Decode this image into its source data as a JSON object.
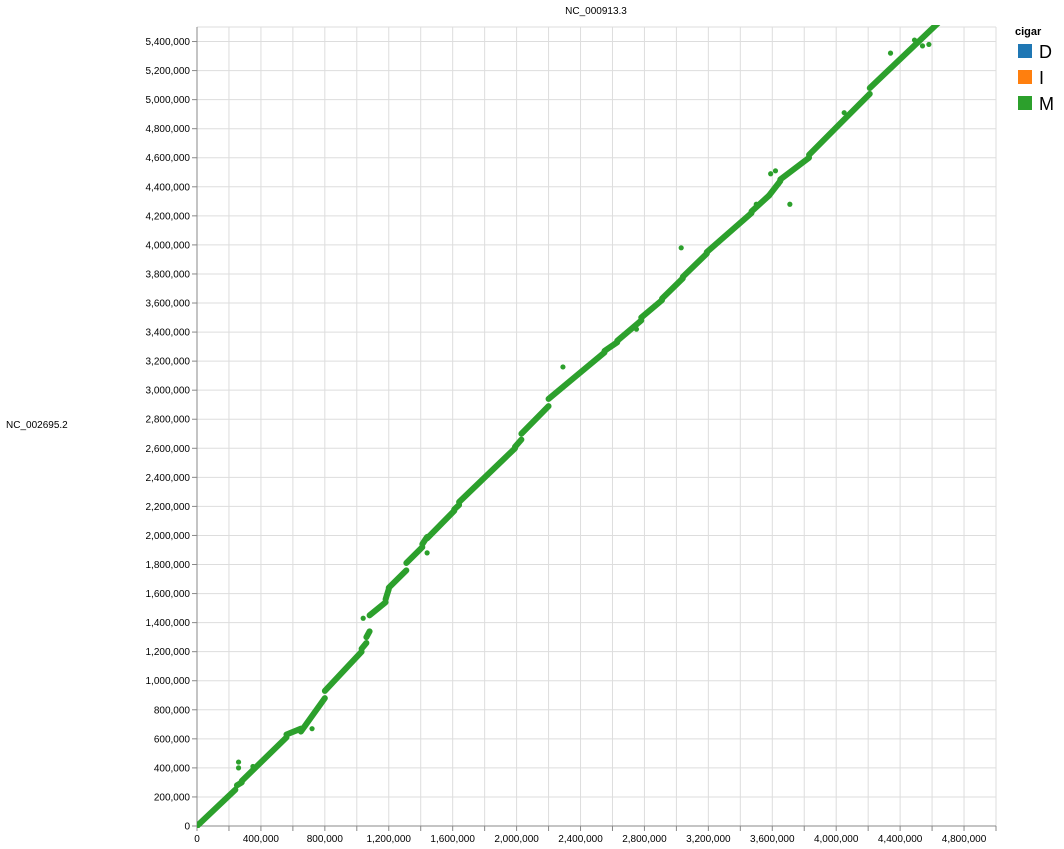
{
  "chart_data": {
    "type": "scatter",
    "title": "",
    "xlabel": "NC_000913.3",
    "ylabel": "NC_002695.2",
    "xlim": [
      0,
      5000000
    ],
    "ylim": [
      0,
      5500000
    ],
    "x_ticks": [
      0,
      400000,
      800000,
      1200000,
      1600000,
      2000000,
      2400000,
      2800000,
      3200000,
      3600000,
      4000000,
      4400000,
      4800000
    ],
    "x_tick_labels": [
      "0",
      "400,000",
      "800,000",
      "1,200,000",
      "1,600,000",
      "2,000,000",
      "2,400,000",
      "2,800,000",
      "3,200,000",
      "3,600,000",
      "4,000,000",
      "4,400,000",
      "4,800,000"
    ],
    "y_ticks": [
      0,
      200000,
      400000,
      600000,
      800000,
      1000000,
      1200000,
      1400000,
      1600000,
      1800000,
      2000000,
      2200000,
      2400000,
      2600000,
      2800000,
      3000000,
      3200000,
      3400000,
      3600000,
      3800000,
      4000000,
      4200000,
      4400000,
      4600000,
      4800000,
      5000000,
      5200000,
      5400000
    ],
    "y_tick_labels": [
      "0",
      "200,000",
      "400,000",
      "600,000",
      "800,000",
      "1,000,000",
      "1,200,000",
      "1,400,000",
      "1,600,000",
      "1,800,000",
      "2,000,000",
      "2,200,000",
      "2,400,000",
      "2,600,000",
      "2,800,000",
      "3,000,000",
      "3,200,000",
      "3,400,000",
      "3,600,000",
      "3,800,000",
      "4,000,000",
      "4,200,000",
      "4,400,000",
      "4,600,000",
      "4,800,000",
      "5,000,000",
      "5,200,000",
      "5,400,000"
    ],
    "grid": true,
    "legend": {
      "title": "cigar",
      "placement": "top-right",
      "items": [
        {
          "label": "D",
          "color": "#1f77b4"
        },
        {
          "label": "I",
          "color": "#ff7f0e"
        },
        {
          "label": "M",
          "color": "#2ca02c"
        }
      ]
    },
    "series": [
      {
        "name": "M",
        "color": "#2ca02c",
        "segments": [
          [
            [
              0,
              0
            ],
            [
              240000,
              250000
            ]
          ],
          [
            [
              250000,
              280000
            ],
            [
              280000,
              300000
            ]
          ],
          [
            [
              280000,
              310000
            ],
            [
              560000,
              610000
            ]
          ],
          [
            [
              560000,
              630000
            ],
            [
              650000,
              670000
            ]
          ],
          [
            [
              650000,
              650000
            ],
            [
              800000,
              880000
            ]
          ],
          [
            [
              800000,
              930000
            ],
            [
              1030000,
              1200000
            ]
          ],
          [
            [
              1030000,
              1220000
            ],
            [
              1060000,
              1260000
            ]
          ],
          [
            [
              1060000,
              1300000
            ],
            [
              1080000,
              1340000
            ]
          ],
          [
            [
              1080000,
              1450000
            ],
            [
              1180000,
              1540000
            ]
          ],
          [
            [
              1180000,
              1560000
            ],
            [
              1200000,
              1630000
            ]
          ],
          [
            [
              1200000,
              1640000
            ],
            [
              1310000,
              1760000
            ]
          ],
          [
            [
              1310000,
              1810000
            ],
            [
              1410000,
              1920000
            ]
          ],
          [
            [
              1410000,
              1940000
            ],
            [
              1440000,
              1990000
            ]
          ],
          [
            [
              1440000,
              1980000
            ],
            [
              1610000,
              2170000
            ]
          ],
          [
            [
              1610000,
              2180000
            ],
            [
              1640000,
              2210000
            ]
          ],
          [
            [
              1640000,
              2230000
            ],
            [
              1990000,
              2600000
            ]
          ],
          [
            [
              1990000,
              2610000
            ],
            [
              2030000,
              2660000
            ]
          ],
          [
            [
              2030000,
              2700000
            ],
            [
              2200000,
              2890000
            ]
          ],
          [
            [
              2200000,
              2940000
            ],
            [
              2550000,
              3260000
            ]
          ],
          [
            [
              2550000,
              3270000
            ],
            [
              2630000,
              3330000
            ]
          ],
          [
            [
              2630000,
              3340000
            ],
            [
              2780000,
              3480000
            ]
          ],
          [
            [
              2780000,
              3500000
            ],
            [
              2910000,
              3620000
            ]
          ],
          [
            [
              2910000,
              3630000
            ],
            [
              3040000,
              3770000
            ]
          ],
          [
            [
              3040000,
              3780000
            ],
            [
              3190000,
              3940000
            ]
          ],
          [
            [
              3190000,
              3950000
            ],
            [
              3470000,
              4220000
            ]
          ],
          [
            [
              3470000,
              4230000
            ],
            [
              3580000,
              4340000
            ]
          ],
          [
            [
              3580000,
              4340000
            ],
            [
              3650000,
              4440000
            ]
          ],
          [
            [
              3650000,
              4450000
            ],
            [
              3830000,
              4600000
            ]
          ],
          [
            [
              3830000,
              4620000
            ],
            [
              4210000,
              5040000
            ]
          ],
          [
            [
              4210000,
              5080000
            ],
            [
              4640000,
              5530000
            ]
          ]
        ],
        "points": [
          [
            260000,
            440000
          ],
          [
            260000,
            400000
          ],
          [
            350000,
            410000
          ],
          [
            720000,
            670000
          ],
          [
            1040000,
            1430000
          ],
          [
            1440000,
            1880000
          ],
          [
            2290000,
            3160000
          ],
          [
            2750000,
            3420000
          ],
          [
            3030000,
            3980000
          ],
          [
            3500000,
            4280000
          ],
          [
            3590000,
            4490000
          ],
          [
            3620000,
            4510000
          ],
          [
            3640000,
            4420000
          ],
          [
            3710000,
            4280000
          ],
          [
            4050000,
            4910000
          ],
          [
            4340000,
            5320000
          ],
          [
            4490000,
            5410000
          ],
          [
            4510000,
            5390000
          ],
          [
            4530000,
            5410000
          ],
          [
            4540000,
            5370000
          ],
          [
            4580000,
            5380000
          ]
        ]
      }
    ]
  }
}
